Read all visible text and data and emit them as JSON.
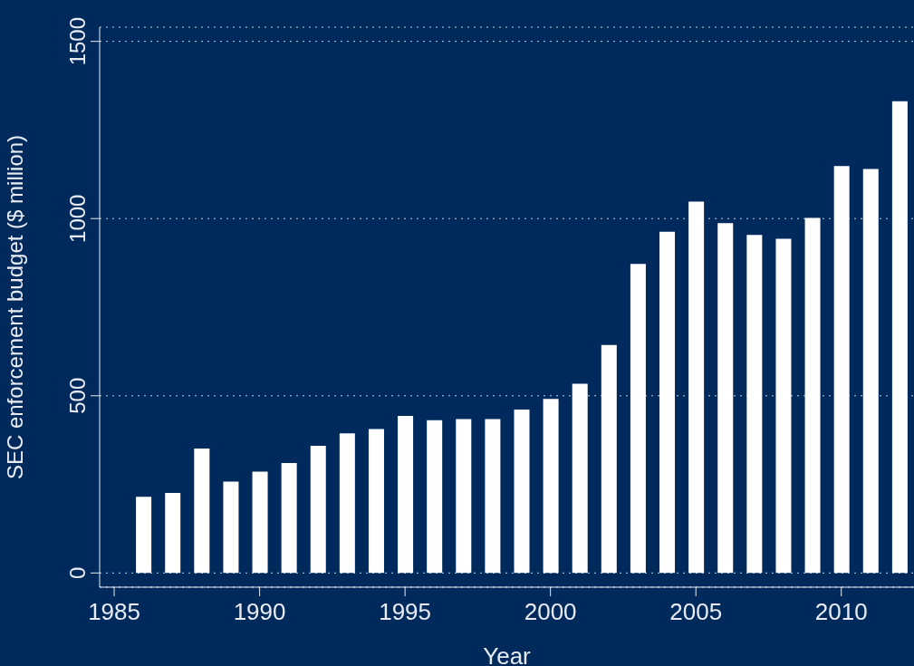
{
  "chart_data": {
    "type": "bar",
    "xlabel": "Year",
    "ylabel": "SEC enforcement budget ($ million)",
    "x": [
      1986,
      1987,
      1988,
      1989,
      1990,
      1991,
      1992,
      1993,
      1994,
      1995,
      1996,
      1997,
      1998,
      1999,
      2000,
      2001,
      2002,
      2003,
      2004,
      2005,
      2006,
      2007,
      2008,
      2009,
      2010,
      2011,
      2012
    ],
    "values": [
      215,
      226,
      351,
      258,
      286,
      310,
      359,
      394,
      406,
      443,
      431,
      434,
      434,
      461,
      491,
      534,
      643,
      872,
      963,
      1048,
      987,
      954,
      943,
      1002,
      1148,
      1140,
      1331
    ],
    "color": "#ffffff",
    "xlim": [
      1984.5,
      2012.5
    ],
    "xticks": [
      1985,
      1990,
      1995,
      2000,
      2005,
      2010
    ],
    "ylim": [
      -40,
      1540
    ],
    "yticks": [
      0,
      500,
      1000,
      1500
    ],
    "grid": "y"
  }
}
